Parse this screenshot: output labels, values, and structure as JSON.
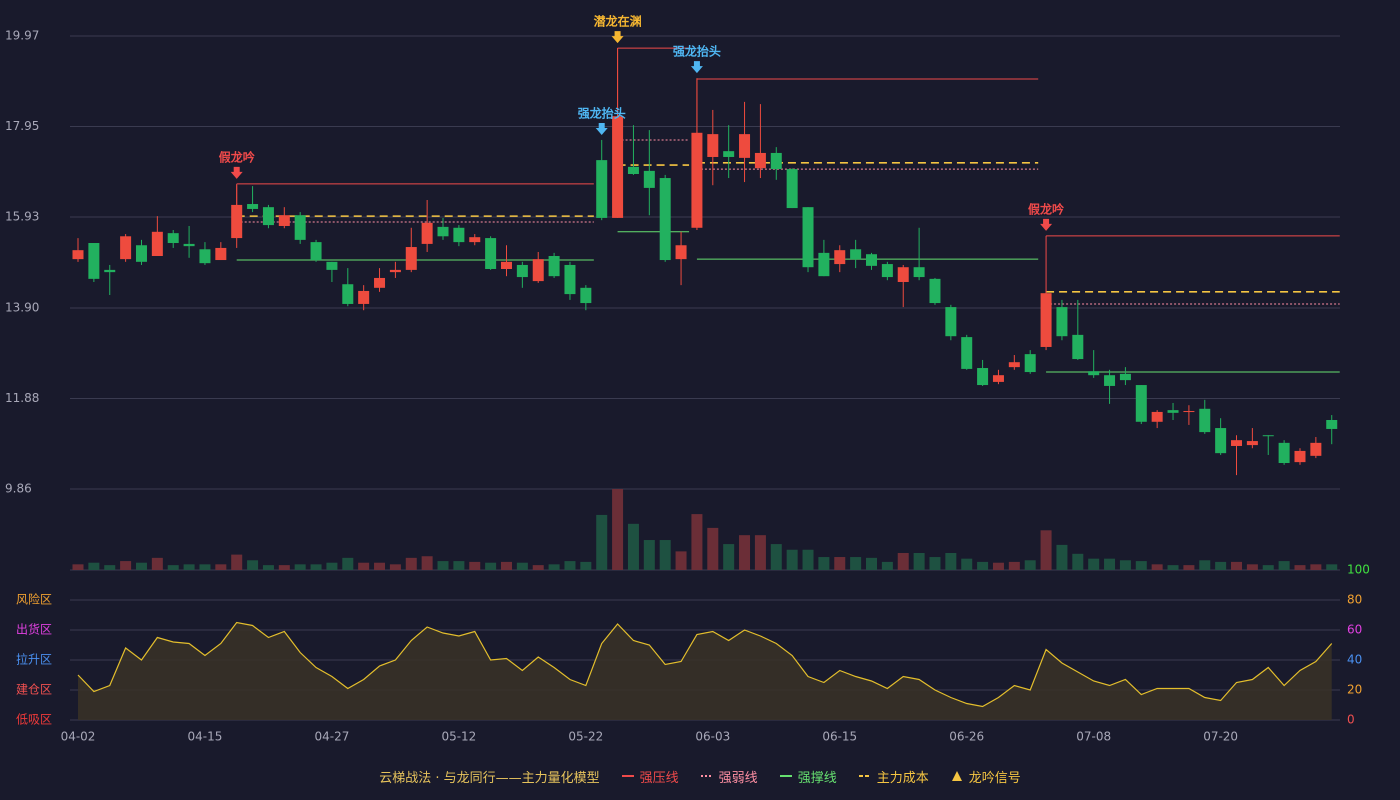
{
  "chart_data": [
    {
      "type": "candlestick",
      "categories": [
        "04-02",
        null,
        null,
        null,
        null,
        null,
        null,
        null,
        "04-15",
        null,
        null,
        null,
        null,
        null,
        null,
        null,
        "04-27",
        null,
        null,
        null,
        null,
        null,
        null,
        null,
        "05-12",
        null,
        null,
        null,
        null,
        null,
        null,
        null,
        "05-22",
        null,
        null,
        null,
        null,
        null,
        null,
        null,
        "06-03",
        null,
        null,
        null,
        null,
        null,
        null,
        null,
        "06-15",
        null,
        null,
        null,
        null,
        null,
        null,
        null,
        "06-26",
        null,
        null,
        null,
        null,
        null,
        null,
        null,
        "07-08",
        null,
        null,
        null,
        null,
        null,
        null,
        null,
        "07-20",
        null,
        null,
        null,
        null,
        null,
        null,
        null
      ],
      "open": [
        14.99,
        15.35,
        14.75,
        14.99,
        15.3,
        15.06,
        15.57,
        15.33,
        15.21,
        14.97,
        15.46,
        16.22,
        16.15,
        15.73,
        15.97,
        15.37,
        14.93,
        14.43,
        13.99,
        14.35,
        14.7,
        14.75,
        15.33,
        15.71,
        15.69,
        15.37,
        15.46,
        14.77,
        14.86,
        14.5,
        15.06,
        14.86,
        14.35,
        17.2,
        15.91,
        17.05,
        16.96,
        16.8,
        14.99,
        15.69,
        17.27,
        17.4,
        17.25,
        17.02,
        17.36,
        17.0,
        16.15,
        15.13,
        14.88,
        15.21,
        15.1,
        14.88,
        14.48,
        14.81,
        14.55,
        13.92,
        13.25,
        12.56,
        12.25,
        12.58,
        12.87,
        13.03,
        13.92,
        13.3,
        12.49,
        12.4,
        12.43,
        12.18,
        11.36,
        11.62,
        11.58,
        11.65,
        11.22,
        10.82,
        10.84,
        11.06,
        10.89,
        10.46,
        10.6,
        11.4
      ],
      "high": [
        15.46,
        15.35,
        14.86,
        15.55,
        15.42,
        15.95,
        15.64,
        15.73,
        15.37,
        15.37,
        16.64,
        16.62,
        16.2,
        16.15,
        16.04,
        15.42,
        14.93,
        14.79,
        14.41,
        14.79,
        14.93,
        15.69,
        16.31,
        15.91,
        15.75,
        15.55,
        15.5,
        15.3,
        14.93,
        15.15,
        15.13,
        14.93,
        14.41,
        17.65,
        19.7,
        17.98,
        17.87,
        16.87,
        15.6,
        19.03,
        18.32,
        17.98,
        18.5,
        18.45,
        17.49,
        17.02,
        16.15,
        15.42,
        15.3,
        15.42,
        15.13,
        14.93,
        14.86,
        15.69,
        14.57,
        13.97,
        13.3,
        12.74,
        12.52,
        12.85,
        12.96,
        14.3,
        14.08,
        14.08,
        12.96,
        12.52,
        12.58,
        12.18,
        11.62,
        11.78,
        11.73,
        11.85,
        11.44,
        11.06,
        11.22,
        11.06,
        10.95,
        10.77,
        11.02,
        11.51
      ],
      "low": [
        14.93,
        14.48,
        14.19,
        14.93,
        14.86,
        15.06,
        15.24,
        15.02,
        14.86,
        14.97,
        15.24,
        16.04,
        15.68,
        15.68,
        15.33,
        14.93,
        14.48,
        13.94,
        13.85,
        14.26,
        14.57,
        14.7,
        15.15,
        15.42,
        15.28,
        15.3,
        14.75,
        14.61,
        14.35,
        14.46,
        14.57,
        14.08,
        13.85,
        15.86,
        15.91,
        16.87,
        15.97,
        14.93,
        14.41,
        15.64,
        16.64,
        16.8,
        16.71,
        16.8,
        16.76,
        16.13,
        14.7,
        14.61,
        14.7,
        14.79,
        14.75,
        14.52,
        13.92,
        14.52,
        13.97,
        13.18,
        12.52,
        12.16,
        12.2,
        12.52,
        12.43,
        12.96,
        13.18,
        12.74,
        12.34,
        11.76,
        12.18,
        11.31,
        11.22,
        11.4,
        11.29,
        11.09,
        10.62,
        10.17,
        10.77,
        10.62,
        10.4,
        10.4,
        10.55,
        10.86
      ],
      "close": [
        15.19,
        14.55,
        14.7,
        15.5,
        14.93,
        15.6,
        15.35,
        15.28,
        14.9,
        15.24,
        16.2,
        16.11,
        15.75,
        15.97,
        15.42,
        14.97,
        14.75,
        13.99,
        14.28,
        14.57,
        14.75,
        15.26,
        15.8,
        15.5,
        15.37,
        15.48,
        14.77,
        14.93,
        14.59,
        14.99,
        14.61,
        14.21,
        14.01,
        15.91,
        18.18,
        16.89,
        16.58,
        14.97,
        15.3,
        17.81,
        17.78,
        17.27,
        17.78,
        17.36,
        17.0,
        16.13,
        14.81,
        14.61,
        15.19,
        14.99,
        14.84,
        14.59,
        14.81,
        14.59,
        14.01,
        13.27,
        12.54,
        12.18,
        12.4,
        12.69,
        12.47,
        14.23,
        13.27,
        12.76,
        12.4,
        12.16,
        12.29,
        11.36,
        11.58,
        11.56,
        11.6,
        11.13,
        10.66,
        10.95,
        10.93,
        11.04,
        10.44,
        10.71,
        10.89,
        11.2
      ],
      "up_color": "#ee4b3e",
      "down_color": "#22b15f",
      "ylim": [
        9.86,
        19.97
      ],
      "yticks": [
        9.86,
        11.88,
        {
          "value": 13.9,
          "label": "13.90"
        },
        15.93,
        17.95,
        19.97
      ],
      "grid": true,
      "signals": [
        {
          "index": 10,
          "label": "假龙吟",
          "color": "#f04a4a"
        },
        {
          "index": 33,
          "label": "强龙抬头",
          "color": "#4fb6f2"
        },
        {
          "index": 34,
          "label": "潜龙在渊",
          "color": "#f5b631"
        },
        {
          "index": 39,
          "label": "强龙抬头",
          "color": "#4fb6f2"
        },
        {
          "index": 61,
          "label": "假龙吟",
          "color": "#f04a4a"
        }
      ],
      "levels": [
        {
          "start": 10,
          "end": 32,
          "pressure": 16.67,
          "weak": 15.82,
          "support": 14.97,
          "cost": 15.95
        },
        {
          "start": 34,
          "end": 38,
          "pressure": 19.7,
          "weak": 17.65,
          "support": 15.6,
          "cost": 17.09
        },
        {
          "start": 39,
          "end": 60,
          "pressure": 19.01,
          "weak": 17.0,
          "support": 14.99,
          "cost": 17.14
        },
        {
          "start": 61,
          "end": 79,
          "pressure": 15.51,
          "weak": 13.99,
          "support": 12.47,
          "cost": 14.26
        }
      ]
    },
    {
      "type": "bar",
      "values": [
        7,
        9,
        6,
        11,
        9,
        15,
        6,
        7,
        7,
        7,
        19,
        12,
        6,
        6,
        7,
        7,
        9,
        15,
        9,
        9,
        7,
        15,
        17,
        11,
        11,
        10,
        9,
        10,
        9,
        6,
        7,
        11,
        10,
        68,
        100,
        57,
        37,
        37,
        23,
        69,
        52,
        32,
        43,
        43,
        32,
        25,
        25,
        16,
        16,
        16,
        15,
        10,
        21,
        21,
        16,
        21,
        14,
        10,
        9,
        10,
        12,
        49,
        31,
        20,
        14,
        14,
        12,
        11,
        7,
        6,
        6,
        12,
        10,
        10,
        7,
        6,
        11,
        6,
        7,
        7
      ],
      "ylim": [
        0,
        100
      ],
      "up_color": "#6b2e37",
      "down_color": "#1e5141"
    },
    {
      "type": "area",
      "values": [
        30,
        19,
        23,
        48,
        40,
        55,
        52,
        51,
        43,
        51,
        65,
        63,
        55,
        59,
        45,
        35,
        29,
        21,
        27,
        36,
        40,
        53,
        62,
        58,
        56,
        59,
        40,
        41,
        33,
        42,
        35,
        27,
        23,
        51,
        64,
        53,
        50,
        37,
        39,
        57,
        59,
        53,
        60,
        56,
        51,
        43,
        29,
        25,
        33,
        29,
        26,
        21,
        29,
        27,
        20,
        15,
        11,
        9,
        15,
        23,
        20,
        47,
        38,
        32,
        26,
        23,
        27,
        17,
        21,
        21,
        21,
        15,
        13,
        25,
        27,
        35,
        23,
        33,
        39,
        51
      ],
      "color": "#e3be2c",
      "fill": "#3a3227",
      "ylim": [
        0,
        100
      ],
      "yticks": [
        0,
        20,
        40,
        60,
        80,
        100
      ],
      "ytick_colors": [
        "#f05050",
        "#f0a030",
        "#4a90f0",
        "#e040e0",
        "#f0a030",
        "#40e040"
      ],
      "zones": [
        {
          "value": 80,
          "label": "风险区",
          "color": "#f0a030"
        },
        {
          "value": 60,
          "label": "出货区",
          "color": "#e040e0"
        },
        {
          "value": 40,
          "label": "拉升区",
          "color": "#4a90f0"
        },
        {
          "value": 20,
          "label": "建仓区",
          "color": "#f05050"
        },
        {
          "value": 0,
          "label": "低吸区",
          "color": "#f03a3a"
        }
      ]
    }
  ],
  "legend": {
    "title": "云梯战法 · 与龙同行——主力量化模型",
    "title_color": "#e6c35c",
    "items": [
      {
        "label": "强压线",
        "color": "#f04a4a",
        "style": "solid"
      },
      {
        "label": "强弱线",
        "color": "#ff8fa3",
        "style": "dotted"
      },
      {
        "label": "强撑线",
        "color": "#66e070",
        "style": "solid"
      },
      {
        "label": "主力成本",
        "color": "#f5c542",
        "style": "dashed"
      },
      {
        "label": "龙吟信号",
        "color": "#f5c542",
        "style": "triangle"
      }
    ]
  }
}
